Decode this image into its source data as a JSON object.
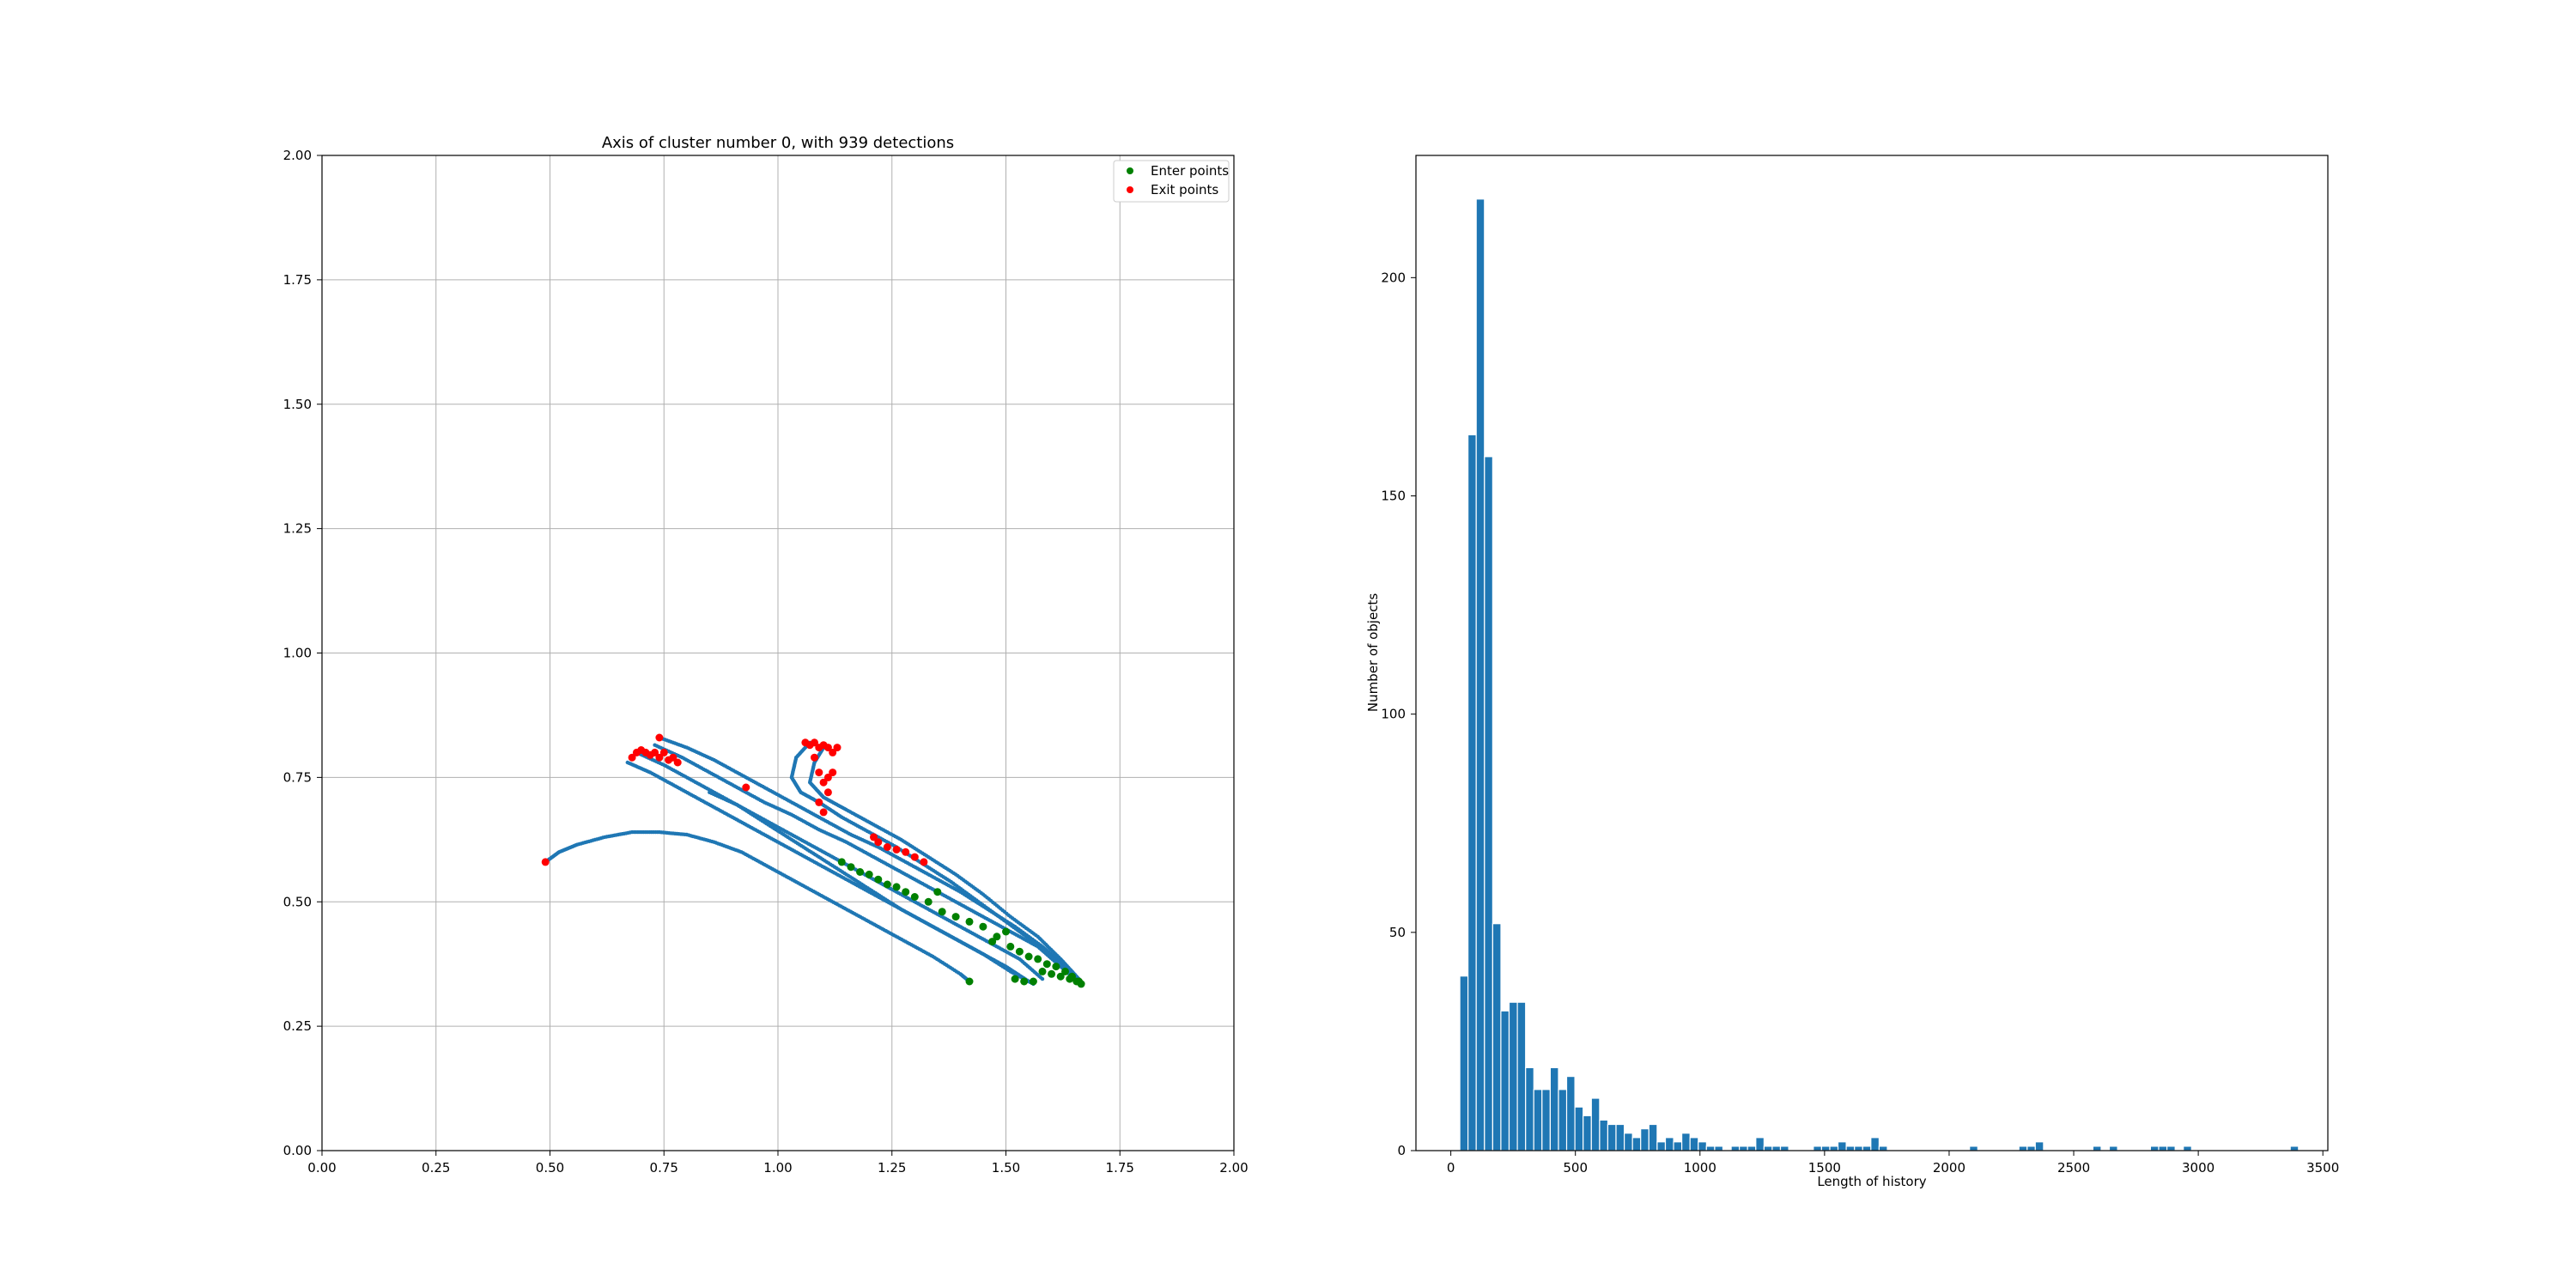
{
  "chart_data": [
    {
      "type": "scatter",
      "title": "Axis of cluster number 0, with 939 detections",
      "xlim": [
        0,
        2.0
      ],
      "ylim": [
        0,
        2.0
      ],
      "xticks": [
        "0.00",
        "0.25",
        "0.50",
        "0.75",
        "1.00",
        "1.25",
        "1.50",
        "1.75",
        "2.00"
      ],
      "yticks": [
        "0.00",
        "0.25",
        "0.50",
        "0.75",
        "1.00",
        "1.25",
        "1.50",
        "1.75",
        "2.00"
      ],
      "grid": true,
      "legend_position": "top-right",
      "trajectory_color": "#1f77b4",
      "trajectories": [
        {
          "x": [
            0.49,
            0.52,
            0.56,
            0.62,
            0.68,
            0.74,
            0.8,
            0.86,
            0.92,
            0.98,
            1.04,
            1.1,
            1.16,
            1.22,
            1.28,
            1.34,
            1.4,
            1.42
          ],
          "y": [
            0.58,
            0.6,
            0.615,
            0.63,
            0.64,
            0.64,
            0.635,
            0.62,
            0.6,
            0.57,
            0.54,
            0.51,
            0.48,
            0.45,
            0.42,
            0.39,
            0.355,
            0.34
          ]
        },
        {
          "x": [
            0.67,
            0.72,
            0.78,
            0.84,
            0.9,
            0.96,
            1.02,
            1.08,
            1.14,
            1.2,
            1.26,
            1.32,
            1.38,
            1.44,
            1.5,
            1.55
          ],
          "y": [
            0.78,
            0.76,
            0.73,
            0.7,
            0.67,
            0.64,
            0.61,
            0.58,
            0.55,
            0.52,
            0.49,
            0.46,
            0.43,
            0.4,
            0.37,
            0.34
          ]
        },
        {
          "x": [
            0.69,
            0.75,
            0.81,
            0.87,
            0.93,
            0.99,
            1.05,
            1.11,
            1.17,
            1.23,
            1.29,
            1.35,
            1.41,
            1.47,
            1.53,
            1.58
          ],
          "y": [
            0.8,
            0.775,
            0.745,
            0.715,
            0.685,
            0.655,
            0.625,
            0.595,
            0.565,
            0.535,
            0.505,
            0.475,
            0.445,
            0.415,
            0.385,
            0.345
          ]
        },
        {
          "x": [
            0.73,
            0.79,
            0.85,
            0.91,
            0.97,
            1.03,
            1.09,
            1.15,
            1.21,
            1.27,
            1.33,
            1.39,
            1.45,
            1.51,
            1.57,
            1.62,
            1.66
          ],
          "y": [
            0.815,
            0.79,
            0.76,
            0.73,
            0.7,
            0.675,
            0.645,
            0.62,
            0.59,
            0.56,
            0.53,
            0.5,
            0.47,
            0.44,
            0.41,
            0.37,
            0.34
          ]
        },
        {
          "x": [
            0.74,
            0.8,
            0.86,
            0.92,
            0.98,
            1.04,
            1.1,
            1.16,
            1.22,
            1.28,
            1.34,
            1.4,
            1.46,
            1.52,
            1.58,
            1.63,
            1.665
          ],
          "y": [
            0.83,
            0.81,
            0.785,
            0.755,
            0.725,
            0.695,
            0.665,
            0.635,
            0.61,
            0.58,
            0.55,
            0.52,
            0.485,
            0.45,
            0.41,
            0.37,
            0.335
          ]
        },
        {
          "x": [
            1.07,
            1.04,
            1.03,
            1.05,
            1.09,
            1.14,
            1.2,
            1.26,
            1.32,
            1.38,
            1.44,
            1.5,
            1.56,
            1.61,
            1.65
          ],
          "y": [
            0.82,
            0.79,
            0.75,
            0.72,
            0.7,
            0.67,
            0.64,
            0.61,
            0.575,
            0.54,
            0.5,
            0.46,
            0.42,
            0.38,
            0.345
          ]
        },
        {
          "x": [
            1.1,
            1.08,
            1.07,
            1.1,
            1.15,
            1.21,
            1.27,
            1.33,
            1.39,
            1.45,
            1.51,
            1.57,
            1.62,
            1.66
          ],
          "y": [
            0.81,
            0.78,
            0.74,
            0.71,
            0.685,
            0.655,
            0.625,
            0.59,
            0.555,
            0.515,
            0.47,
            0.43,
            0.385,
            0.345
          ]
        },
        {
          "x": [
            0.85,
            0.91,
            0.97,
            1.03,
            1.09,
            1.15,
            1.21,
            1.27,
            1.33,
            1.39,
            1.45,
            1.51,
            1.56
          ],
          "y": [
            0.72,
            0.695,
            0.66,
            0.625,
            0.59,
            0.555,
            0.52,
            0.485,
            0.455,
            0.425,
            0.395,
            0.36,
            0.335
          ]
        }
      ],
      "series": [
        {
          "name": "Enter points",
          "color": "#008000",
          "x": [
            1.14,
            1.16,
            1.18,
            1.2,
            1.22,
            1.24,
            1.26,
            1.28,
            1.3,
            1.33,
            1.36,
            1.39,
            1.42,
            1.45,
            1.48,
            1.51,
            1.53,
            1.55,
            1.57,
            1.59,
            1.61,
            1.63,
            1.645,
            1.655,
            1.665,
            1.42,
            1.52,
            1.54,
            1.56,
            1.6,
            1.62,
            1.64,
            1.66,
            1.58,
            1.5,
            1.47,
            1.35
          ],
          "y": [
            0.58,
            0.57,
            0.56,
            0.555,
            0.545,
            0.535,
            0.53,
            0.52,
            0.51,
            0.5,
            0.48,
            0.47,
            0.46,
            0.45,
            0.43,
            0.41,
            0.4,
            0.39,
            0.385,
            0.375,
            0.37,
            0.36,
            0.35,
            0.34,
            0.335,
            0.34,
            0.345,
            0.34,
            0.34,
            0.355,
            0.35,
            0.345,
            0.34,
            0.36,
            0.44,
            0.42,
            0.52
          ]
        },
        {
          "name": "Exit points",
          "color": "#ff0000",
          "x": [
            0.49,
            0.68,
            0.69,
            0.7,
            0.71,
            0.72,
            0.73,
            0.74,
            0.75,
            0.76,
            0.77,
            0.78,
            0.74,
            1.06,
            1.07,
            1.08,
            1.09,
            1.1,
            1.11,
            1.12,
            1.13,
            1.08,
            1.09,
            1.1,
            1.11,
            1.09,
            1.1,
            1.11,
            1.12,
            1.21,
            1.22,
            1.24,
            1.26,
            1.28,
            1.3,
            1.32,
            0.93
          ],
          "y": [
            0.58,
            0.79,
            0.8,
            0.805,
            0.8,
            0.795,
            0.8,
            0.79,
            0.8,
            0.785,
            0.79,
            0.78,
            0.83,
            0.82,
            0.815,
            0.82,
            0.81,
            0.815,
            0.81,
            0.8,
            0.81,
            0.79,
            0.76,
            0.74,
            0.72,
            0.7,
            0.68,
            0.75,
            0.76,
            0.63,
            0.62,
            0.61,
            0.605,
            0.6,
            0.59,
            0.58,
            0.73
          ]
        }
      ]
    },
    {
      "type": "bar",
      "title": "",
      "xlabel": "Length of history",
      "ylabel": "Number of objects",
      "xlim": [
        -140,
        3520
      ],
      "ylim": [
        0,
        228
      ],
      "xticks": [
        "0",
        "500",
        "1000",
        "1500",
        "2000",
        "2500",
        "3000",
        "3500"
      ],
      "yticks": [
        "0",
        "50",
        "100",
        "150",
        "200"
      ],
      "grid": false,
      "bar_color": "#1f77b4",
      "bin_width": 33,
      "bin_starts": [
        36,
        69,
        102,
        135,
        168,
        201,
        234,
        267,
        300,
        333,
        366,
        399,
        432,
        465,
        498,
        531,
        564,
        597,
        630,
        663,
        696,
        729,
        762,
        795,
        828,
        861,
        894,
        927,
        960,
        993,
        1026,
        1059,
        1125,
        1158,
        1191,
        1224,
        1257,
        1290,
        1323,
        1455,
        1488,
        1521,
        1554,
        1587,
        1620,
        1653,
        1686,
        1719,
        2082,
        2280,
        2313,
        2346,
        2577,
        2643,
        2808,
        2841,
        2874,
        2940,
        3369
      ],
      "values": [
        40,
        164,
        218,
        159,
        52,
        32,
        34,
        34,
        19,
        14,
        14,
        19,
        14,
        17,
        10,
        8,
        12,
        7,
        6,
        6,
        4,
        3,
        5,
        6,
        2,
        3,
        2,
        4,
        3,
        2,
        1,
        1,
        1,
        1,
        1,
        3,
        1,
        1,
        1,
        1,
        1,
        1,
        2,
        1,
        1,
        1,
        3,
        1,
        1,
        1,
        1,
        2,
        1,
        1,
        1,
        1,
        1,
        1,
        1
      ]
    }
  ],
  "legend": {
    "enter_label": "Enter points",
    "exit_label": "Exit points"
  }
}
